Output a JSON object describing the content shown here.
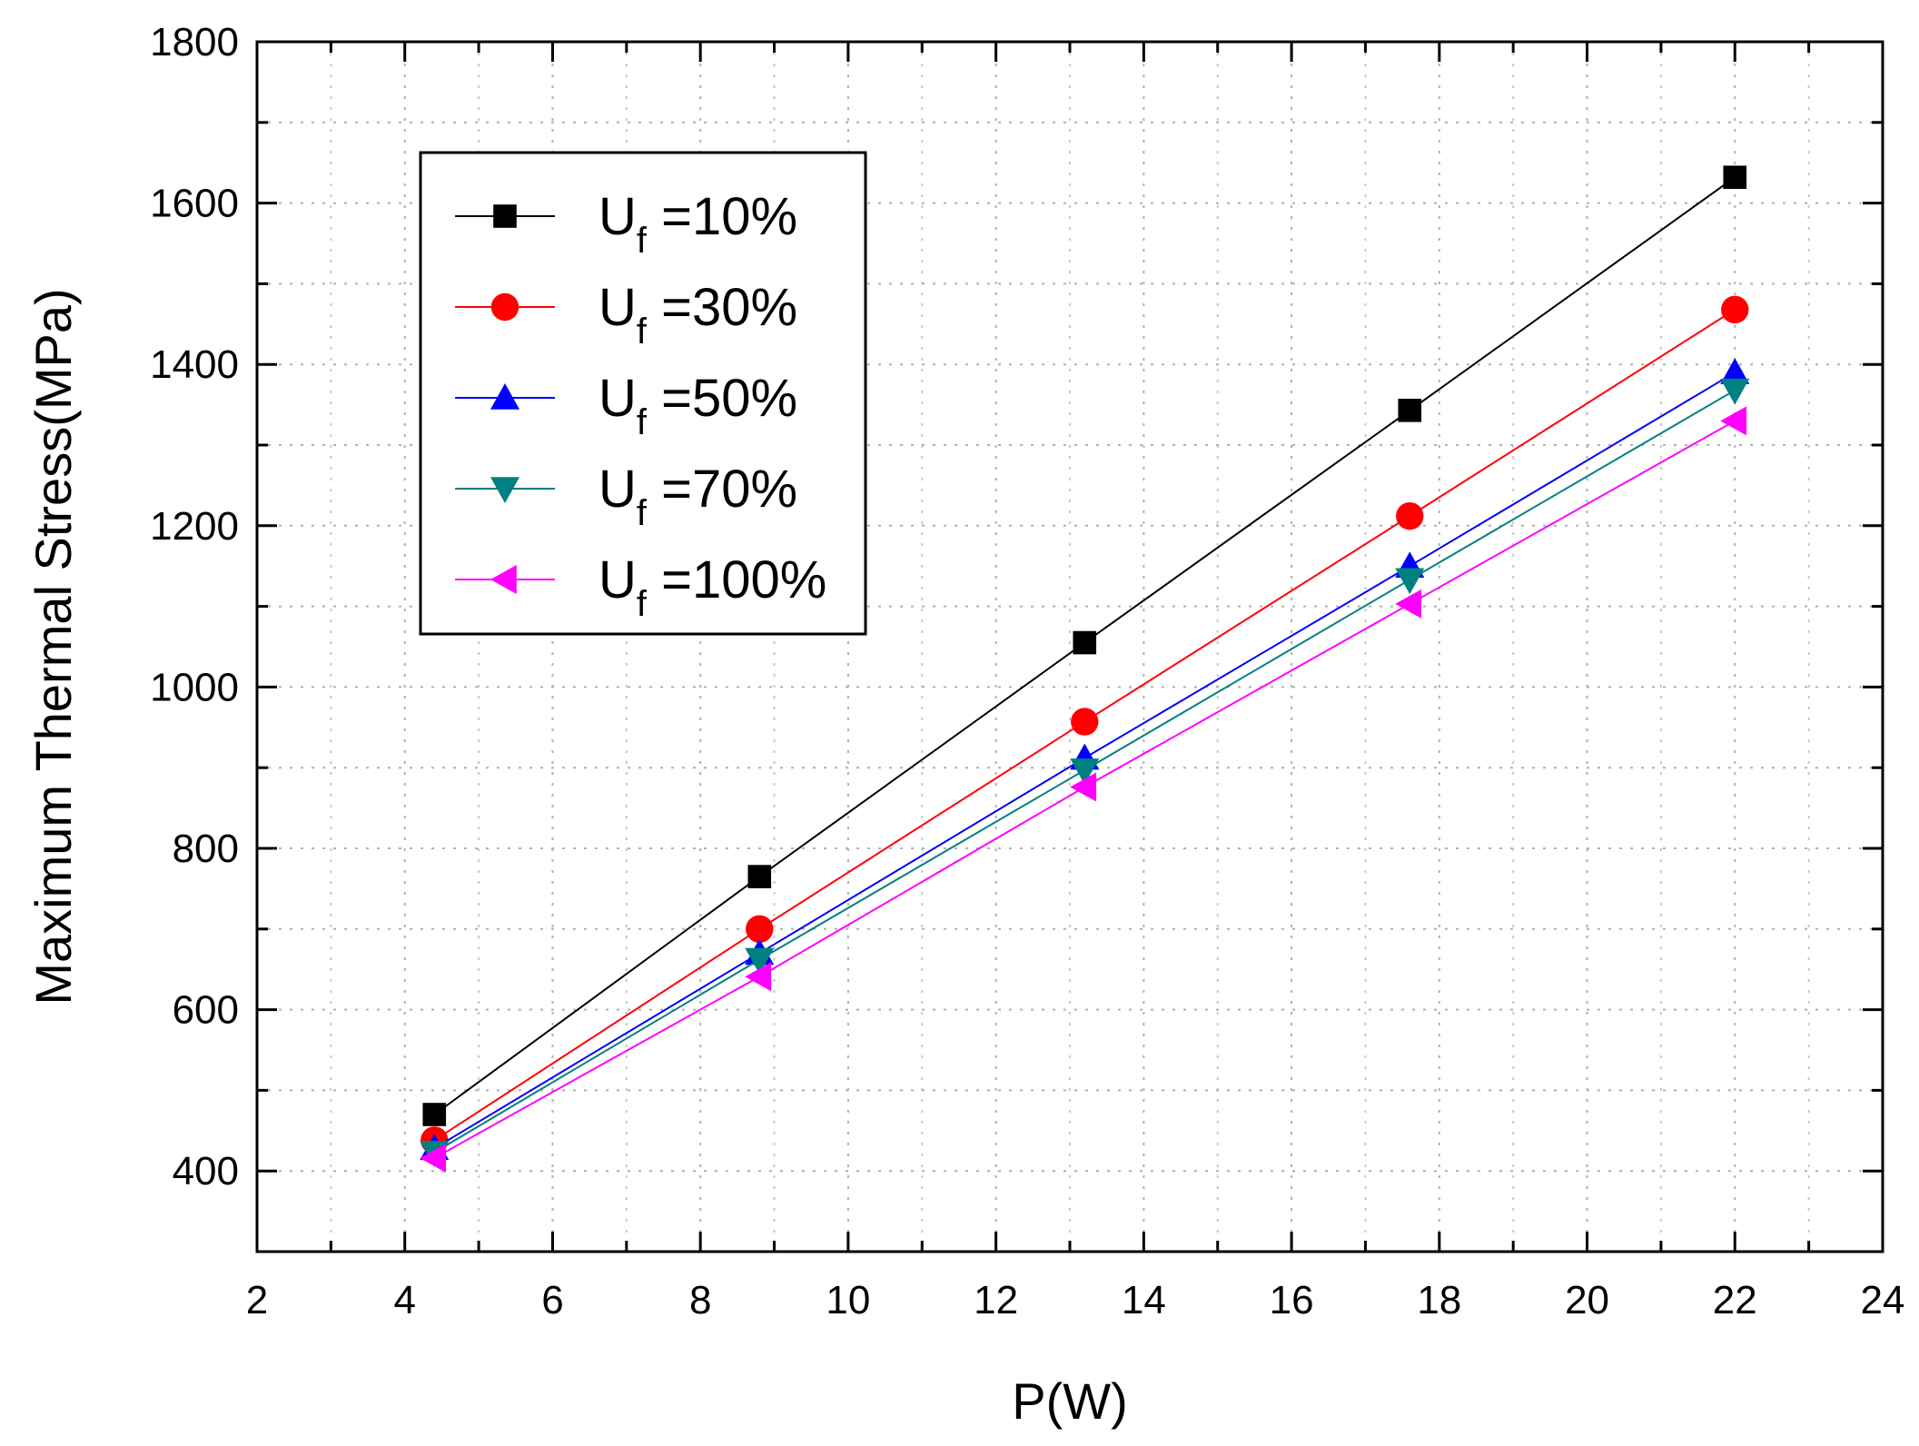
{
  "chart_data": {
    "type": "line",
    "xlabel": "P(W)",
    "ylabel": "Maximum Thermal Stress(MPa)",
    "xlim": [
      2,
      24
    ],
    "ylim": [
      300,
      1800
    ],
    "xticks": [
      2,
      4,
      6,
      8,
      10,
      12,
      14,
      16,
      18,
      20,
      22,
      24
    ],
    "yticks": [
      400,
      600,
      800,
      1000,
      1200,
      1400,
      1600,
      1800
    ],
    "x": [
      4.4,
      8.8,
      13.2,
      17.6,
      22.0
    ],
    "grid": true,
    "legend_position": "top-left",
    "series": [
      {
        "name_main": "U",
        "name_sub": "f",
        "name_rest": " =10%",
        "marker": "square",
        "color": "#000000",
        "values": [
          470,
          765,
          1055,
          1343,
          1632
        ]
      },
      {
        "name_main": "U",
        "name_sub": "f",
        "name_rest": " =30%",
        "marker": "circle",
        "color": "#ff0000",
        "values": [
          438,
          700,
          957,
          1212,
          1468
        ]
      },
      {
        "name_main": "U",
        "name_sub": "f",
        "name_rest": " =50%",
        "marker": "triangle-up",
        "color": "#0000ff",
        "values": [
          428,
          670,
          912,
          1150,
          1390
        ]
      },
      {
        "name_main": "U",
        "name_sub": "f",
        "name_rest": " =70%",
        "marker": "triangle-down",
        "color": "#008080",
        "values": [
          423,
          662,
          897,
          1133,
          1368
        ]
      },
      {
        "name_main": "U",
        "name_sub": "f",
        "name_rest": " =100%",
        "marker": "triangle-left",
        "color": "#ff00ff",
        "values": [
          416,
          641,
          876,
          1103,
          1330
        ]
      }
    ]
  }
}
